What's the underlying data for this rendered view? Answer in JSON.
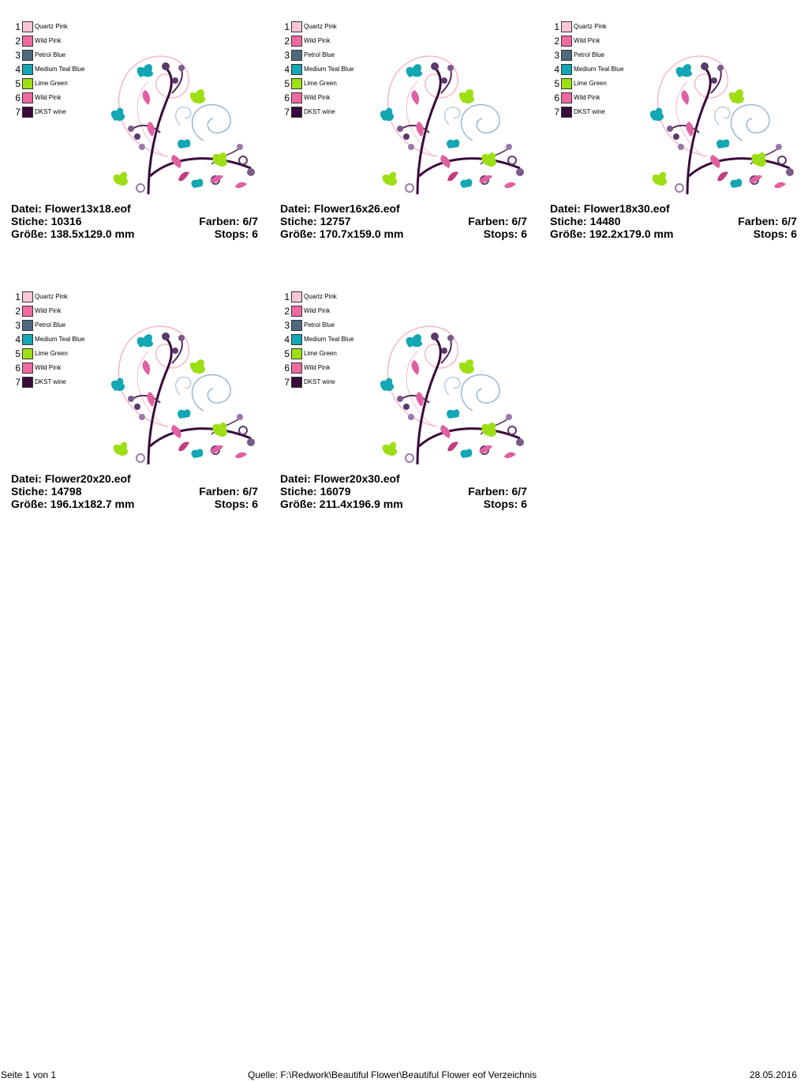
{
  "thread_legend": [
    {
      "num": "1",
      "name": "Quartz Pink",
      "color": "#f8c6d4"
    },
    {
      "num": "2",
      "name": "Wild Pink",
      "color": "#f06aa0"
    },
    {
      "num": "3",
      "name": "Petrol Blue",
      "color": "#4e6a80"
    },
    {
      "num": "4",
      "name": "Medium Teal Blue",
      "color": "#13a6b4"
    },
    {
      "num": "5",
      "name": "Lime Green",
      "color": "#9ddf14"
    },
    {
      "num": "6",
      "name": "Wild Pink",
      "color": "#f06aa0"
    },
    {
      "num": "7",
      "name": "DKST wine",
      "color": "#3a0a3a"
    }
  ],
  "designs": [
    {
      "file": "Datei: Flower13x18.eof",
      "stitches": "Stiche: 10316",
      "colors": "Farben: 6/7",
      "size": "Größe: 138.5x129.0 mm",
      "stops": "Stops: 6"
    },
    {
      "file": "Datei: Flower16x26.eof",
      "stitches": "Stiche: 12757",
      "colors": "Farben: 6/7",
      "size": "Größe: 170.7x159.0 mm",
      "stops": "Stops: 6"
    },
    {
      "file": "Datei: Flower18x30.eof",
      "stitches": "Stiche: 14480",
      "colors": "Farben: 6/7",
      "size": "Größe: 192.2x179.0 mm",
      "stops": "Stops: 6"
    },
    {
      "file": "Datei: Flower20x20.eof",
      "stitches": "Stiche: 14798",
      "colors": "Farben: 6/7",
      "size": "Größe: 196.1x182.7 mm",
      "stops": "Stops: 6"
    },
    {
      "file": "Datei: Flower20x30.eof",
      "stitches": "Stiche: 16079",
      "colors": "Farben: 6/7",
      "size": "Größe: 211.4x196.9 mm",
      "stops": "Stops: 6"
    }
  ],
  "footer": {
    "page": "Seite 1 von 1",
    "source": "Quelle: F:\\Redwork\\Beautiful Flower\\Beautiful Flower eof Verzeichnis",
    "date": "28.05.2016"
  }
}
